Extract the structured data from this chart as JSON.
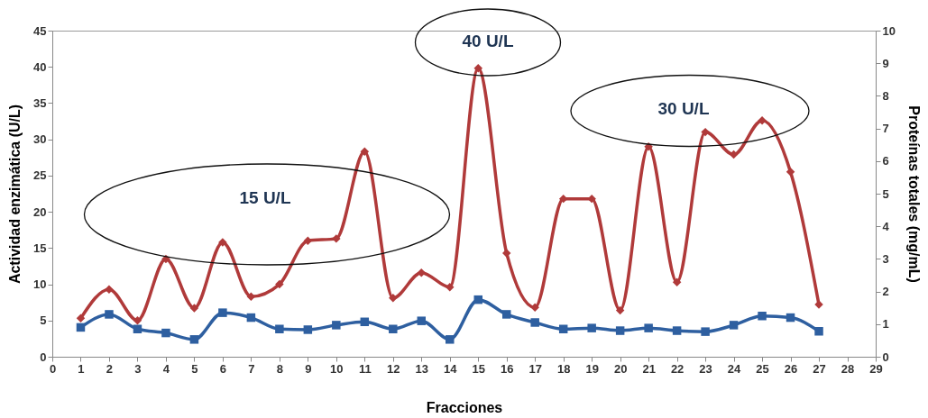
{
  "chart_data": {
    "type": "line",
    "xlabel": "Fracciones",
    "ylabel": "Actividad  enzimática (U/L)",
    "y2label": "Proteínas totales  (mg/mL)",
    "x": [
      1,
      2,
      3,
      4,
      5,
      6,
      7,
      8,
      9,
      10,
      11,
      12,
      13,
      14,
      15,
      16,
      17,
      18,
      19,
      20,
      21,
      22,
      23,
      24,
      25,
      26,
      27
    ],
    "series": [
      {
        "color": "#b03a3a",
        "marker": "diamond",
        "values": [
          5.3,
          9.3,
          5,
          13.5,
          6.7,
          15.8,
          8.3,
          10,
          16,
          16.3,
          28.3,
          8.1,
          11.6,
          9.6,
          39.8,
          14.3,
          6.8,
          21.8,
          21.8,
          6.4,
          29,
          10.3,
          31,
          27.9,
          32.6,
          25.5,
          7.2
        ]
      },
      {
        "color": "#2e5fa0",
        "marker": "square",
        "axis": "y2",
        "values": [
          0.9,
          1.3,
          0.85,
          0.73,
          0.53,
          1.35,
          1.2,
          0.85,
          0.83,
          0.97,
          1.07,
          0.85,
          1.1,
          0.53,
          1.75,
          1.3,
          1.05,
          0.85,
          0.88,
          0.8,
          0.88,
          0.8,
          0.77,
          0.97,
          1.25,
          1.2,
          0.78
        ]
      }
    ],
    "xlim": [
      0,
      29
    ],
    "xticks": [
      0,
      1,
      2,
      3,
      4,
      5,
      6,
      7,
      8,
      9,
      10,
      11,
      12,
      13,
      14,
      15,
      16,
      17,
      18,
      19,
      20,
      21,
      22,
      23,
      24,
      25,
      26,
      27,
      28,
      29
    ],
    "ylim": [
      0,
      45
    ],
    "yticks": [
      0,
      5,
      10,
      15,
      20,
      25,
      30,
      35,
      40,
      45
    ],
    "y2lim": [
      0,
      10
    ],
    "y2ticks": [
      0,
      1,
      2,
      3,
      4,
      5,
      6,
      7,
      8,
      9,
      10
    ],
    "annotations": [
      "15 U/L",
      "40 U/L",
      "30 U/L"
    ],
    "grid": false
  }
}
